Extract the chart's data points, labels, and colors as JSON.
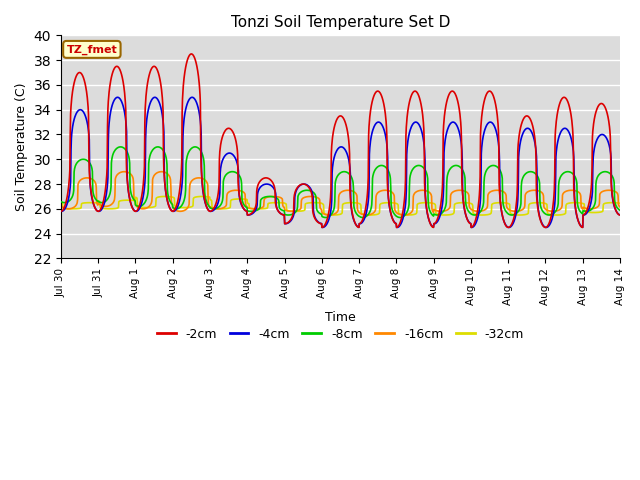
{
  "title": "Tonzi Soil Temperature Set D",
  "xlabel": "Time",
  "ylabel": "Soil Temperature (C)",
  "ylim": [
    22,
    40
  ],
  "annotation": "TZ_fmet",
  "bg_color": "#dcdcdc",
  "series": {
    "-2cm": {
      "color": "#dd0000",
      "lw": 1.2
    },
    "-4cm": {
      "color": "#0000dd",
      "lw": 1.2
    },
    "-8cm": {
      "color": "#00cc00",
      "lw": 1.2
    },
    "-16cm": {
      "color": "#ff8800",
      "lw": 1.2
    },
    "-32cm": {
      "color": "#dddd00",
      "lw": 1.2
    }
  },
  "xtick_labels": [
    "Jul 30",
    "Jul 31",
    "Aug 1",
    "Aug 2",
    "Aug 3",
    "Aug 4",
    "Aug 5",
    "Aug 6",
    "Aug 7",
    "Aug 8",
    "Aug 9",
    "Aug 10",
    "Aug 11",
    "Aug 12",
    "Aug 13",
    "Aug 14"
  ],
  "xtick_positions": [
    0,
    1,
    2,
    3,
    4,
    5,
    6,
    7,
    8,
    9,
    10,
    11,
    12,
    13,
    14,
    15
  ],
  "yticks": [
    22,
    24,
    26,
    28,
    30,
    32,
    34,
    36,
    38,
    40
  ]
}
